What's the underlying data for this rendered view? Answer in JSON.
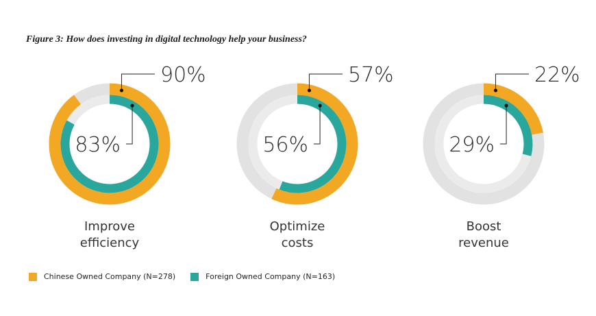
{
  "title": "Figure 3: How does investing in digital technology help your business?",
  "chart_data": {
    "type": "donut",
    "title": "Figure 3: How does investing in digital technology help your business?",
    "colors": {
      "chinese": "#f2a823",
      "foreign": "#2aa79d",
      "track": "#e2e2e2",
      "track_inner": "#ebebeb"
    },
    "series": [
      {
        "name": "Chinese Owned Company (N=278)",
        "key": "chinese"
      },
      {
        "name": "Foreign Owned Company (N=163)",
        "key": "foreign"
      }
    ],
    "categories": [
      {
        "label_line1": "Improve",
        "label_line2": "efficiency",
        "chinese": 90,
        "foreign": 83,
        "chinese_label": "90%",
        "foreign_label": "83%"
      },
      {
        "label_line1": "Optimize",
        "label_line2": "costs",
        "chinese": 57,
        "foreign": 56,
        "chinese_label": "57%",
        "foreign_label": "56%"
      },
      {
        "label_line1": "Boost",
        "label_line2": "revenue",
        "chinese": 22,
        "foreign": 29,
        "chinese_label": "22%",
        "foreign_label": "29%"
      }
    ]
  },
  "legend": [
    {
      "label": "Chinese Owned Company (N=278)",
      "color": "#f2a823"
    },
    {
      "label": "Foreign Owned Company (N=163)",
      "color": "#2aa79d"
    }
  ]
}
